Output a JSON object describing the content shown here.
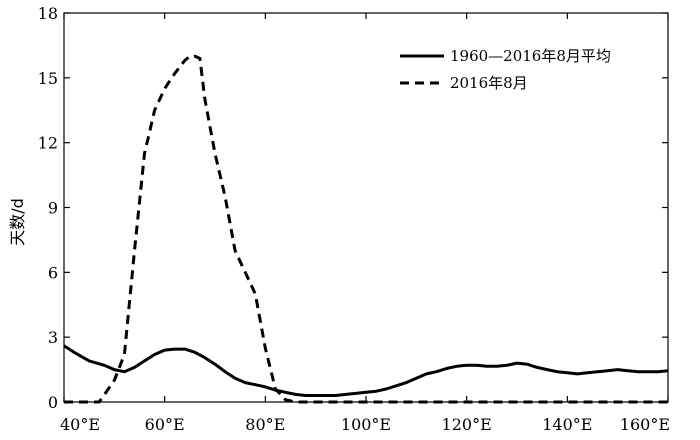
{
  "chart_data": {
    "type": "line",
    "ylabel": "天数/d",
    "xlim": [
      40,
      160
    ],
    "ylim": [
      0,
      18
    ],
    "x_ticks": [
      40,
      60,
      80,
      100,
      120,
      140,
      160
    ],
    "x_tick_labels": [
      "40°E",
      "60°E",
      "80°E",
      "100°E",
      "120°E",
      "140°E",
      "160°E"
    ],
    "y_ticks": [
      0,
      3,
      6,
      9,
      12,
      15,
      18
    ],
    "y_tick_labels": [
      "0",
      "3",
      "6",
      "9",
      "12",
      "15",
      "18"
    ],
    "grid": false,
    "legend_position": "top-right",
    "series": [
      {
        "name": "1960—2016年8月平均",
        "style": "solid",
        "x": [
          40,
          42,
          45,
          48,
          50,
          52,
          54,
          56,
          58,
          60,
          62,
          64,
          66,
          68,
          70,
          72,
          74,
          76,
          78,
          80,
          82,
          84,
          86,
          88,
          90,
          92,
          94,
          96,
          98,
          100,
          102,
          104,
          106,
          108,
          110,
          112,
          114,
          116,
          118,
          120,
          122,
          124,
          126,
          128,
          130,
          132,
          134,
          136,
          138,
          140,
          142,
          144,
          146,
          148,
          150,
          152,
          154,
          156,
          158,
          160
        ],
        "y": [
          2.6,
          2.3,
          1.9,
          1.7,
          1.5,
          1.4,
          1.6,
          1.9,
          2.2,
          2.4,
          2.45,
          2.45,
          2.3,
          2.05,
          1.75,
          1.4,
          1.1,
          0.9,
          0.8,
          0.7,
          0.55,
          0.45,
          0.35,
          0.3,
          0.3,
          0.3,
          0.3,
          0.35,
          0.4,
          0.45,
          0.5,
          0.6,
          0.75,
          0.9,
          1.1,
          1.3,
          1.4,
          1.55,
          1.65,
          1.7,
          1.7,
          1.65,
          1.65,
          1.7,
          1.8,
          1.75,
          1.6,
          1.5,
          1.4,
          1.35,
          1.3,
          1.35,
          1.4,
          1.45,
          1.5,
          1.45,
          1.4,
          1.4,
          1.4,
          1.45
        ]
      },
      {
        "name": "2016年8月",
        "style": "dashed",
        "x": [
          40,
          45,
          47,
          50,
          52,
          54,
          56,
          57,
          58,
          60,
          62,
          64,
          65,
          66,
          67,
          68,
          70,
          72,
          74,
          76,
          78,
          80,
          82,
          84,
          86,
          90,
          100,
          120,
          140,
          160
        ],
        "y": [
          0,
          0,
          0,
          1.0,
          2.2,
          7.0,
          11.5,
          12.5,
          13.5,
          14.5,
          15.2,
          15.8,
          16.0,
          16.0,
          15.9,
          14.0,
          11.5,
          9.5,
          7.0,
          6.0,
          5.0,
          2.5,
          0.6,
          0.1,
          0,
          0,
          0,
          0,
          0,
          0
        ]
      }
    ]
  }
}
